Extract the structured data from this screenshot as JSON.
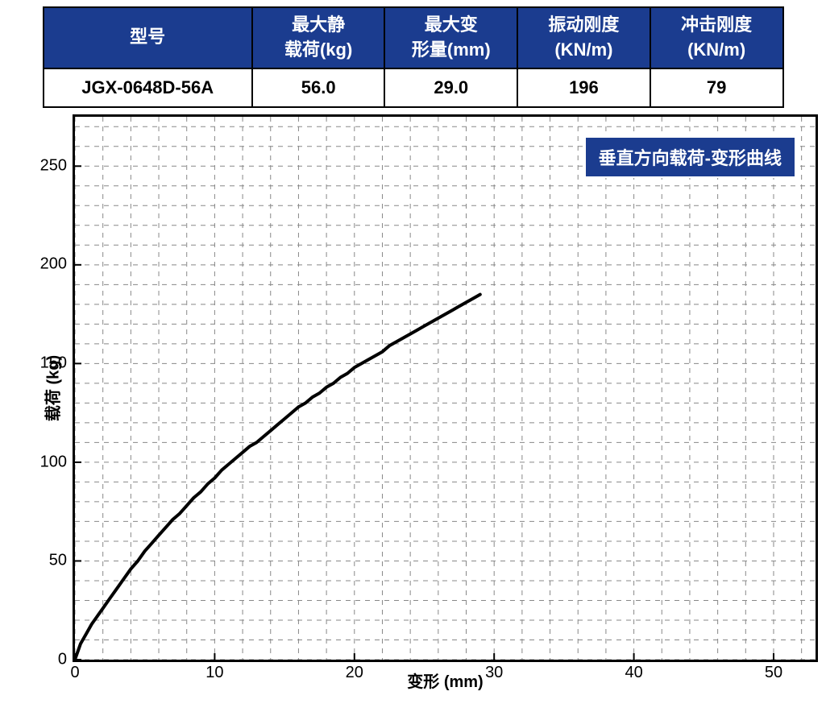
{
  "table": {
    "headers": [
      {
        "line1": "型号",
        "line2": ""
      },
      {
        "line1": "最大静",
        "line2": "载荷(kg)"
      },
      {
        "line1": "最大变",
        "line2": "形量(mm)"
      },
      {
        "line1": "振动刚度",
        "line2": "(KN/m)"
      },
      {
        "line1": "冲击刚度",
        "line2": "(KN/m)"
      }
    ],
    "row": [
      "JGX-0648D-56A",
      "56.0",
      "29.0",
      "196",
      "79"
    ],
    "header_bg": "#1b3c8f",
    "header_fg": "#ffffff",
    "cell_bg": "#ffffff",
    "cell_fg": "#000000",
    "border_color": "#000000"
  },
  "chart": {
    "type": "line",
    "legend_text": "垂直方向载荷-变形曲线",
    "legend_bg": "#1b3c8f",
    "legend_fg": "#ffffff",
    "xlabel": "变形 (mm)",
    "ylabel": "载荷 (kg)",
    "xlim": [
      0,
      53
    ],
    "ylim": [
      0,
      275
    ],
    "xticks": [
      0,
      10,
      20,
      30,
      40,
      50
    ],
    "yticks": [
      0,
      50,
      100,
      150,
      200,
      250
    ],
    "minor_x_step": 2,
    "minor_y_step": 10,
    "grid_color": "#888888",
    "grid_dash": "6,6",
    "line_color": "#000000",
    "line_width": 4,
    "background_color": "#ffffff",
    "border_color": "#000000",
    "label_fontsize": 20,
    "tick_fontsize": 20,
    "legend_fontsize": 22,
    "data": [
      [
        0.0,
        0
      ],
      [
        0.4,
        8
      ],
      [
        0.8,
        13
      ],
      [
        1.2,
        18
      ],
      [
        1.6,
        22
      ],
      [
        2.0,
        26
      ],
      [
        2.5,
        31
      ],
      [
        3.0,
        36
      ],
      [
        3.5,
        41
      ],
      [
        4.0,
        46
      ],
      [
        4.5,
        50
      ],
      [
        5.0,
        55
      ],
      [
        5.5,
        59
      ],
      [
        6.0,
        63
      ],
      [
        6.5,
        67
      ],
      [
        7.0,
        71
      ],
      [
        7.5,
        74
      ],
      [
        8.0,
        78
      ],
      [
        8.5,
        82
      ],
      [
        9.0,
        85
      ],
      [
        9.5,
        89
      ],
      [
        10.0,
        92
      ],
      [
        10.5,
        96
      ],
      [
        11.0,
        99
      ],
      [
        11.5,
        102
      ],
      [
        12.0,
        105
      ],
      [
        12.5,
        108
      ],
      [
        13.0,
        110
      ],
      [
        13.5,
        113
      ],
      [
        14.0,
        116
      ],
      [
        14.5,
        119
      ],
      [
        15.0,
        122
      ],
      [
        15.5,
        125
      ],
      [
        16.0,
        128
      ],
      [
        16.5,
        130
      ],
      [
        17.0,
        133
      ],
      [
        17.5,
        135
      ],
      [
        18.0,
        138
      ],
      [
        18.5,
        140
      ],
      [
        19.0,
        143
      ],
      [
        19.5,
        145
      ],
      [
        20.0,
        148
      ],
      [
        20.5,
        150
      ],
      [
        21.0,
        152
      ],
      [
        21.5,
        154
      ],
      [
        22.0,
        156
      ],
      [
        22.5,
        159
      ],
      [
        23.0,
        161
      ],
      [
        23.5,
        163
      ],
      [
        24.0,
        165
      ],
      [
        24.5,
        167
      ],
      [
        25.0,
        169
      ],
      [
        25.5,
        171
      ],
      [
        26.0,
        173
      ],
      [
        26.5,
        175
      ],
      [
        27.0,
        177
      ],
      [
        27.5,
        179
      ],
      [
        28.0,
        181
      ],
      [
        28.5,
        183
      ],
      [
        29.0,
        185
      ]
    ]
  }
}
